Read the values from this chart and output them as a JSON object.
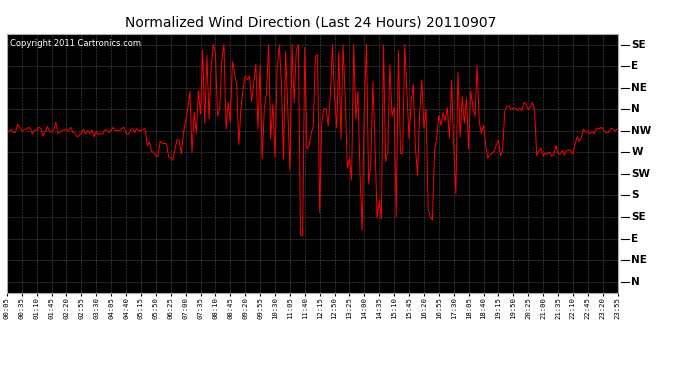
{
  "title": "Normalized Wind Direction (Last 24 Hours) 20110907",
  "copyright_text": "Copyright 2011 Cartronics.com",
  "line_color": "#ff0000",
  "grid_color": "#888888",
  "outer_bg": "#ffffff",
  "plot_bg": "#000000",
  "title_fontsize": 10,
  "copyright_fontsize": 6,
  "ytick_labels": [
    "SE",
    "E",
    "NE",
    "N",
    "NW",
    "W",
    "SW",
    "S",
    "SE",
    "E",
    "NE",
    "N"
  ],
  "ytick_values": [
    11,
    10,
    9,
    8,
    7,
    6,
    5,
    4,
    3,
    2,
    1,
    0
  ],
  "ylim": [
    -0.5,
    11.5
  ],
  "xtick_labels": [
    "00:05",
    "00:35",
    "01:10",
    "01:45",
    "02:20",
    "02:55",
    "03:30",
    "04:05",
    "04:40",
    "05:15",
    "05:50",
    "06:25",
    "07:00",
    "07:35",
    "08:10",
    "08:45",
    "09:20",
    "09:55",
    "10:30",
    "11:05",
    "11:40",
    "12:15",
    "12:50",
    "13:25",
    "14:00",
    "14:35",
    "15:10",
    "15:45",
    "16:20",
    "16:55",
    "17:30",
    "18:05",
    "18:40",
    "19:15",
    "19:50",
    "20:25",
    "21:00",
    "21:35",
    "22:10",
    "22:45",
    "23:20",
    "23:55"
  ]
}
